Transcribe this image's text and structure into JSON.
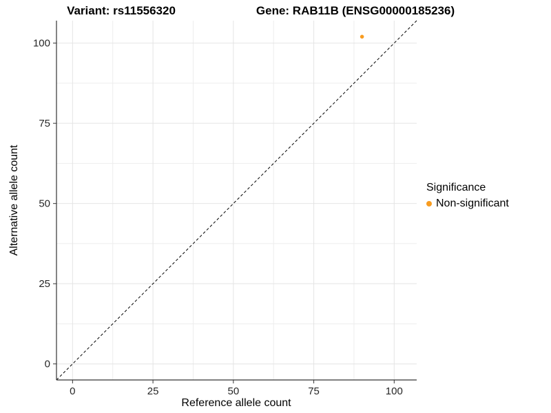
{
  "chart_data": {
    "type": "scatter",
    "title_left": "Variant: rs11556320",
    "title_right": "Gene: RAB11B (ENSG00000185236)",
    "xlabel": "Reference allele count",
    "ylabel": "Alternative allele count",
    "xlim": [
      -5,
      107
    ],
    "ylim": [
      -5,
      107
    ],
    "xticks": [
      0,
      25,
      50,
      75,
      100
    ],
    "yticks": [
      0,
      25,
      50,
      75,
      100
    ],
    "xminor": [
      12.5,
      37.5,
      62.5,
      87.5
    ],
    "yminor": [
      12.5,
      37.5,
      62.5,
      87.5
    ],
    "grid": true,
    "legend_position": "right",
    "points": [
      {
        "x": 90,
        "y": 102,
        "series": "Non-significant"
      }
    ],
    "reference_line": {
      "kind": "identity",
      "from": -5,
      "to": 107,
      "style": "dashed"
    },
    "legend": {
      "title": "Significance",
      "items": [
        {
          "label": "Non-significant",
          "color": "#F89C20"
        }
      ]
    },
    "colors": {
      "point": "#F89C20",
      "grid_major": "#E4E4E4",
      "grid_minor": "#EDEDED",
      "axis_line": "#333333",
      "tick_mark": "#333333",
      "tick_text": "#262626",
      "reference_line": "#000000"
    }
  }
}
